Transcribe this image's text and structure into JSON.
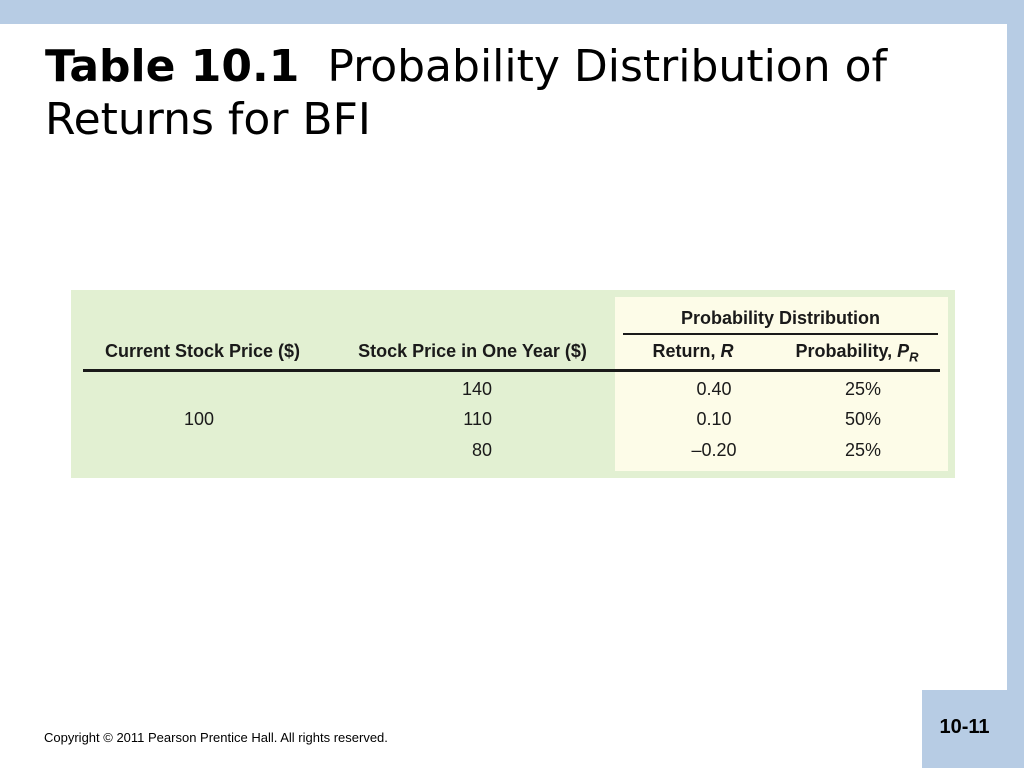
{
  "slide": {
    "title_bold": "Table 10.1",
    "title_rest": "Probability Distribution of Returns for BFI",
    "copyright": "Copyright © 2011 Pearson Prentice Hall. All rights reserved.",
    "page_number": "10-11"
  },
  "table": {
    "group_header": "Probability Distribution",
    "columns": {
      "current_price": "Current Stock Price ($)",
      "price_one_year": "Stock Price in One Year ($)",
      "return_label": "Return, ",
      "return_symbol": "R",
      "probability_label": "Probability, ",
      "probability_symbol": "P",
      "probability_subscript": "R"
    },
    "current_price_value": "100",
    "rows": [
      {
        "price_one_year": "140",
        "return": "0.40",
        "probability": "25%"
      },
      {
        "price_one_year": "110",
        "return": "0.10",
        "probability": "50%"
      },
      {
        "price_one_year": "80",
        "return": "–0.20",
        "probability": "25%"
      }
    ]
  },
  "colors": {
    "frame": "#b7cce4",
    "table_background": "#e2f0d2",
    "probability_panel": "#fdfce8"
  }
}
